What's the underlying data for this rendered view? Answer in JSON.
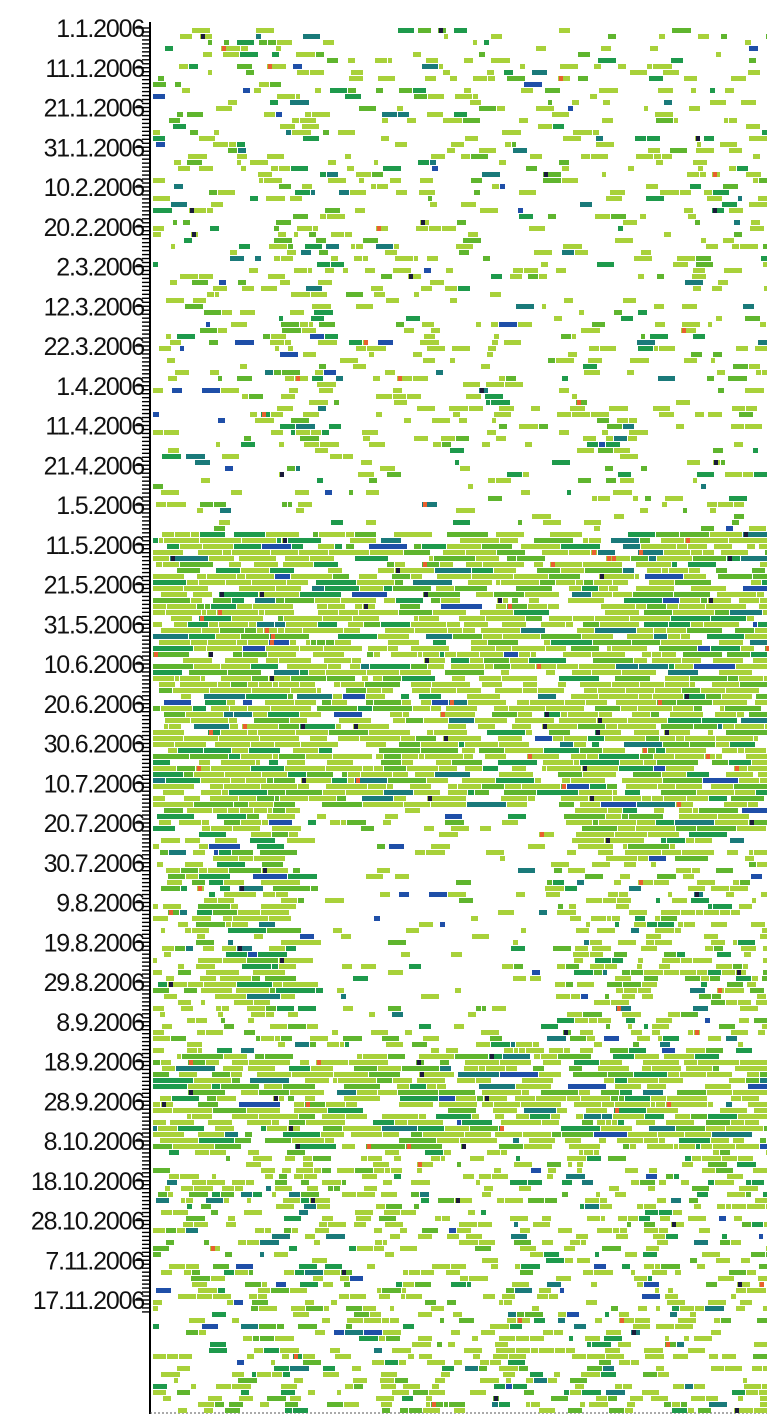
{
  "chart_data": {
    "type": "heatmap",
    "title": "",
    "xlabel": "",
    "ylabel": "",
    "y_axis": {
      "type": "date",
      "range": [
        "2006-01-01",
        "2006-11-20"
      ],
      "tick_step_days": 10,
      "tick_labels": [
        "1.1.2006",
        "11.1.2006",
        "21.1.2006",
        "31.1.2006",
        "10.2.2006",
        "20.2.2006",
        "2.3.2006",
        "12.3.2006",
        "22.3.2006",
        "1.4.2006",
        "11.4.2006",
        "21.4.2006",
        "1.5.2006",
        "11.5.2006",
        "21.5.2006",
        "31.5.2006",
        "10.6.2006",
        "20.6.2006",
        "30.6.2006",
        "10.7.2006",
        "20.7.2006",
        "30.7.2006",
        "9.8.2006",
        "19.8.2006",
        "29.8.2006",
        "8.9.2006",
        "18.9.2006",
        "28.9.2006",
        "8.10.2006",
        "18.10.2006",
        "28.10.2006",
        "7.11.2006",
        "17.11.2006"
      ]
    },
    "x_axis": {
      "tick_labels": []
    },
    "color_scale": [
      "#a8d13a",
      "#5fb52e",
      "#1e9a4c",
      "#1a7a7a",
      "#1f4fa8",
      "#1a1a3a",
      "#e8602e"
    ],
    "activity_bands": [
      {
        "label": "1.1.2006 – 21.4.2006",
        "intensity": "sparse"
      },
      {
        "label": "1.5.2006 – 20.7.2006",
        "intensity": "dense"
      },
      {
        "label": "30.7.2006 – 18.9.2006",
        "intensity": "moderate"
      },
      {
        "label": "28.9.2006 – 8.10.2006",
        "intensity": "dense"
      },
      {
        "label": "18.10.2006 – 17.11.2006",
        "intensity": "moderate"
      }
    ],
    "grid": false,
    "legend": "none"
  }
}
